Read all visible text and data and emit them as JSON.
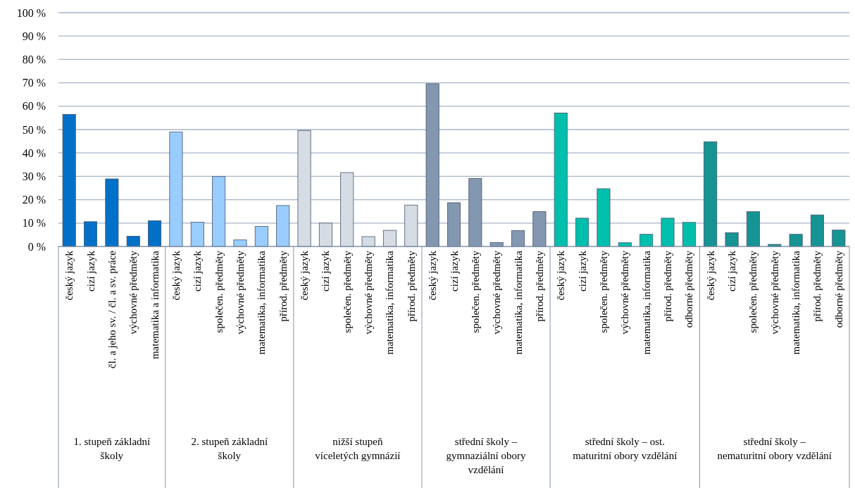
{
  "chart_data": {
    "type": "bar",
    "categories": [
      "český jazyk",
      "cizí jazyk",
      "čl. a jeho sv. / čl. a sv. práce",
      "výchovné předměty",
      "matematika a informatika",
      "český jazyk",
      "cizí jazyk",
      "společen. předměty",
      "výchovné předměty",
      "matematika, informatika",
      "přírod. předměty",
      "český jazyk",
      "cizí jazyk",
      "společen. předměty",
      "výchovné předměty",
      "matematika, informatika",
      "přírod. předměty",
      "český jazyk",
      "cizí jazyk",
      "společen. předměty",
      "výchovné předměty",
      "matematika, informatika",
      "přírod. předměty",
      "český jazyk",
      "cizí jazyk",
      "společen. předměty",
      "výchovné předměty",
      "matematika, informatika",
      "přírod. předměty",
      "odborné předměty",
      "český jazyk",
      "cizí jazyk",
      "společen. předměty",
      "výchovné předměty",
      "matematika, informatika",
      "přírod. předměty",
      "odborné předměty"
    ],
    "series": [
      {
        "color": "#0070c8",
        "values": [
          56.5,
          10.6,
          28.9,
          4.4,
          11.0,
          null,
          null,
          null,
          null,
          null,
          null,
          null,
          null,
          null,
          null,
          null,
          null,
          null,
          null,
          null,
          null,
          null,
          null,
          null,
          null,
          null,
          null,
          null,
          null,
          null,
          null,
          null,
          null,
          null,
          null,
          null,
          null
        ]
      },
      {
        "color": "#99ccff",
        "values": [
          null,
          null,
          null,
          null,
          null,
          49.0,
          10.4,
          29.9,
          2.8,
          8.6,
          17.5,
          null,
          null,
          null,
          null,
          null,
          null,
          null,
          null,
          null,
          null,
          null,
          null,
          null,
          null,
          null,
          null,
          null,
          null,
          null,
          null,
          null,
          null,
          null,
          null,
          null,
          null
        ]
      },
      {
        "color": "#d6dce4",
        "values": [
          null,
          null,
          null,
          null,
          null,
          null,
          null,
          null,
          null,
          null,
          null,
          49.6,
          10.0,
          31.6,
          4.2,
          6.9,
          17.7,
          null,
          null,
          null,
          null,
          null,
          null,
          null,
          null,
          null,
          null,
          null,
          null,
          null,
          null,
          null,
          null,
          null,
          null,
          null,
          null
        ]
      },
      {
        "color": "#8497b0",
        "values": [
          null,
          null,
          null,
          null,
          null,
          null,
          null,
          null,
          null,
          null,
          null,
          null,
          null,
          null,
          null,
          null,
          null,
          69.6,
          18.7,
          29.1,
          1.7,
          6.8,
          14.9,
          null,
          null,
          null,
          null,
          null,
          null,
          null,
          null,
          null,
          null,
          null,
          null,
          null,
          null
        ]
      },
      {
        "color": "#00bfad",
        "values": [
          null,
          null,
          null,
          null,
          null,
          null,
          null,
          null,
          null,
          null,
          null,
          null,
          null,
          null,
          null,
          null,
          null,
          null,
          null,
          null,
          null,
          null,
          null,
          57.1,
          12.1,
          24.7,
          1.6,
          5.2,
          12.1,
          10.3,
          null,
          null,
          null,
          null,
          null,
          null,
          null
        ]
      },
      {
        "color": "#169494",
        "values": [
          null,
          null,
          null,
          null,
          null,
          null,
          null,
          null,
          null,
          null,
          null,
          null,
          null,
          null,
          null,
          null,
          null,
          null,
          null,
          null,
          null,
          null,
          null,
          null,
          null,
          null,
          null,
          null,
          null,
          null,
          44.8,
          5.9,
          14.9,
          0.9,
          5.2,
          13.5,
          7.0
        ]
      }
    ],
    "annotations": [
      "1. stupeň základní školy",
      "2. stupeň základní školy",
      "nižší stupeň víceletých gymnázií",
      "střední školy – gymnaziální obory vzdělání",
      "střední školy – ost. maturitní obory vzdělání",
      "střední školy – nematuritní obory vzdělání"
    ],
    "ylim": [
      0,
      100
    ],
    "yticks": [
      {
        "value": 0,
        "label": "0 %"
      },
      {
        "value": 10,
        "label": "10 %"
      },
      {
        "value": 20,
        "label": "20 %"
      },
      {
        "value": 30,
        "label": "30 %"
      },
      {
        "value": 40,
        "label": "40 %"
      },
      {
        "value": 50,
        "label": "50 %"
      },
      {
        "value": 60,
        "label": "60 %"
      },
      {
        "value": 70,
        "label": "70 %"
      },
      {
        "value": 80,
        "label": "80 %"
      },
      {
        "value": 90,
        "label": "90 %"
      },
      {
        "value": 100,
        "label": "100 %"
      }
    ],
    "grid": "y"
  }
}
